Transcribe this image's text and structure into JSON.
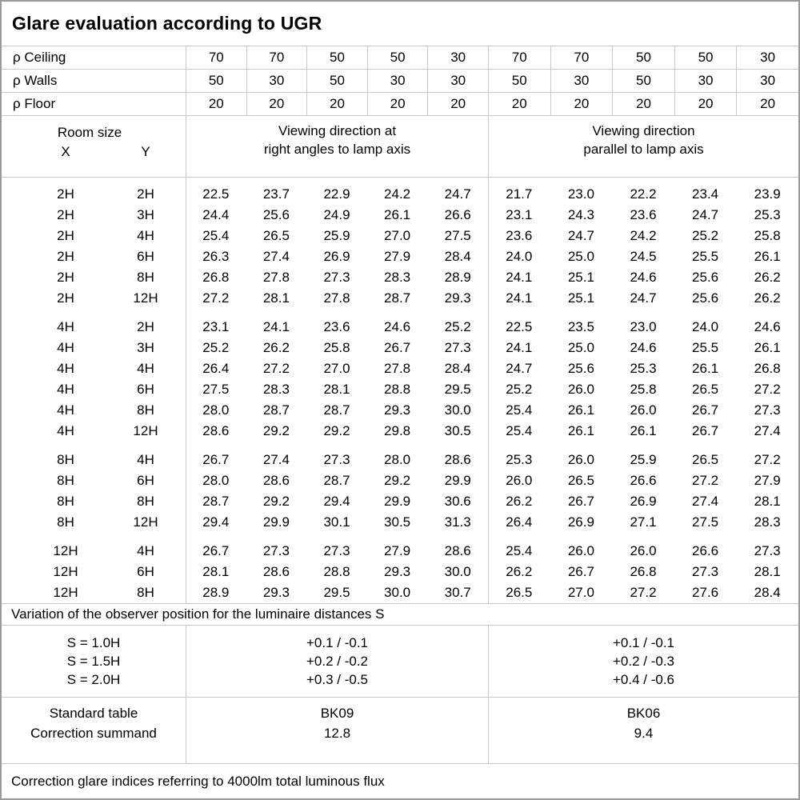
{
  "title": "Glare evaluation according to UGR",
  "reflectance_rows": [
    {
      "label": "ρ Ceiling",
      "values": [
        "70",
        "70",
        "50",
        "50",
        "30",
        "70",
        "70",
        "50",
        "50",
        "30"
      ]
    },
    {
      "label": "ρ Walls",
      "values": [
        "50",
        "30",
        "50",
        "30",
        "30",
        "50",
        "30",
        "50",
        "30",
        "30"
      ]
    },
    {
      "label": "ρ Floor",
      "values": [
        "20",
        "20",
        "20",
        "20",
        "20",
        "20",
        "20",
        "20",
        "20",
        "20"
      ]
    }
  ],
  "room_size": {
    "title": "Room size",
    "x_label": "X",
    "y_label": "Y"
  },
  "direction_headers": {
    "right_angles_line1": "Viewing direction at",
    "right_angles_line2": "right angles to lamp axis",
    "parallel_line1": "Viewing direction",
    "parallel_line2": "parallel to lamp axis"
  },
  "ugr_blocks": [
    {
      "rows": [
        {
          "x": "2H",
          "y": "2H",
          "right_angles": [
            "22.5",
            "23.7",
            "22.9",
            "24.2",
            "24.7"
          ],
          "parallel": [
            "21.7",
            "23.0",
            "22.2",
            "23.4",
            "23.9"
          ]
        },
        {
          "x": "2H",
          "y": "3H",
          "right_angles": [
            "24.4",
            "25.6",
            "24.9",
            "26.1",
            "26.6"
          ],
          "parallel": [
            "23.1",
            "24.3",
            "23.6",
            "24.7",
            "25.3"
          ]
        },
        {
          "x": "2H",
          "y": "4H",
          "right_angles": [
            "25.4",
            "26.5",
            "25.9",
            "27.0",
            "27.5"
          ],
          "parallel": [
            "23.6",
            "24.7",
            "24.2",
            "25.2",
            "25.8"
          ]
        },
        {
          "x": "2H",
          "y": "6H",
          "right_angles": [
            "26.3",
            "27.4",
            "26.9",
            "27.9",
            "28.4"
          ],
          "parallel": [
            "24.0",
            "25.0",
            "24.5",
            "25.5",
            "26.1"
          ]
        },
        {
          "x": "2H",
          "y": "8H",
          "right_angles": [
            "26.8",
            "27.8",
            "27.3",
            "28.3",
            "28.9"
          ],
          "parallel": [
            "24.1",
            "25.1",
            "24.6",
            "25.6",
            "26.2"
          ]
        },
        {
          "x": "2H",
          "y": "12H",
          "right_angles": [
            "27.2",
            "28.1",
            "27.8",
            "28.7",
            "29.3"
          ],
          "parallel": [
            "24.1",
            "25.1",
            "24.7",
            "25.6",
            "26.2"
          ]
        }
      ]
    },
    {
      "rows": [
        {
          "x": "4H",
          "y": "2H",
          "right_angles": [
            "23.1",
            "24.1",
            "23.6",
            "24.6",
            "25.2"
          ],
          "parallel": [
            "22.5",
            "23.5",
            "23.0",
            "24.0",
            "24.6"
          ]
        },
        {
          "x": "4H",
          "y": "3H",
          "right_angles": [
            "25.2",
            "26.2",
            "25.8",
            "26.7",
            "27.3"
          ],
          "parallel": [
            "24.1",
            "25.0",
            "24.6",
            "25.5",
            "26.1"
          ]
        },
        {
          "x": "4H",
          "y": "4H",
          "right_angles": [
            "26.4",
            "27.2",
            "27.0",
            "27.8",
            "28.4"
          ],
          "parallel": [
            "24.7",
            "25.6",
            "25.3",
            "26.1",
            "26.8"
          ]
        },
        {
          "x": "4H",
          "y": "6H",
          "right_angles": [
            "27.5",
            "28.3",
            "28.1",
            "28.8",
            "29.5"
          ],
          "parallel": [
            "25.2",
            "26.0",
            "25.8",
            "26.5",
            "27.2"
          ]
        },
        {
          "x": "4H",
          "y": "8H",
          "right_angles": [
            "28.0",
            "28.7",
            "28.7",
            "29.3",
            "30.0"
          ],
          "parallel": [
            "25.4",
            "26.1",
            "26.0",
            "26.7",
            "27.3"
          ]
        },
        {
          "x": "4H",
          "y": "12H",
          "right_angles": [
            "28.6",
            "29.2",
            "29.2",
            "29.8",
            "30.5"
          ],
          "parallel": [
            "25.4",
            "26.1",
            "26.1",
            "26.7",
            "27.4"
          ]
        }
      ]
    },
    {
      "rows": [
        {
          "x": "8H",
          "y": "4H",
          "right_angles": [
            "26.7",
            "27.4",
            "27.3",
            "28.0",
            "28.6"
          ],
          "parallel": [
            "25.3",
            "26.0",
            "25.9",
            "26.5",
            "27.2"
          ]
        },
        {
          "x": "8H",
          "y": "6H",
          "right_angles": [
            "28.0",
            "28.6",
            "28.7",
            "29.2",
            "29.9"
          ],
          "parallel": [
            "26.0",
            "26.5",
            "26.6",
            "27.2",
            "27.9"
          ]
        },
        {
          "x": "8H",
          "y": "8H",
          "right_angles": [
            "28.7",
            "29.2",
            "29.4",
            "29.9",
            "30.6"
          ],
          "parallel": [
            "26.2",
            "26.7",
            "26.9",
            "27.4",
            "28.1"
          ]
        },
        {
          "x": "8H",
          "y": "12H",
          "right_angles": [
            "29.4",
            "29.9",
            "30.1",
            "30.5",
            "31.3"
          ],
          "parallel": [
            "26.4",
            "26.9",
            "27.1",
            "27.5",
            "28.3"
          ]
        }
      ]
    },
    {
      "rows": [
        {
          "x": "12H",
          "y": "4H",
          "right_angles": [
            "26.7",
            "27.3",
            "27.3",
            "27.9",
            "28.6"
          ],
          "parallel": [
            "25.4",
            "26.0",
            "26.0",
            "26.6",
            "27.3"
          ]
        },
        {
          "x": "12H",
          "y": "6H",
          "right_angles": [
            "28.1",
            "28.6",
            "28.8",
            "29.3",
            "30.0"
          ],
          "parallel": [
            "26.2",
            "26.7",
            "26.8",
            "27.3",
            "28.1"
          ]
        },
        {
          "x": "12H",
          "y": "8H",
          "right_angles": [
            "28.9",
            "29.3",
            "29.5",
            "30.0",
            "30.7"
          ],
          "parallel": [
            "26.5",
            "27.0",
            "27.2",
            "27.6",
            "28.4"
          ]
        }
      ]
    }
  ],
  "observer_variation": {
    "caption": "Variation of the observer position for the luminaire distances S",
    "rows": [
      {
        "s": "S = 1.0H",
        "right_angles": "+0.1 / -0.1",
        "parallel": "+0.1 / -0.1"
      },
      {
        "s": "S = 1.5H",
        "right_angles": "+0.2 / -0.2",
        "parallel": "+0.2 / -0.3"
      },
      {
        "s": "S = 2.0H",
        "right_angles": "+0.3 / -0.5",
        "parallel": "+0.4 / -0.6"
      }
    ]
  },
  "summary": {
    "standard_table_label": "Standard table",
    "correction_summand_label": "Correction summand",
    "right_angles": {
      "standard_table": "BK09",
      "correction_summand": "12.8"
    },
    "parallel": {
      "standard_table": "BK06",
      "correction_summand": "9.4"
    }
  },
  "footer": "Correction glare indices referring to 4000lm total luminous flux",
  "colors": {
    "background": "#ffffff",
    "text": "#000000",
    "grid_line": "#c8c8c8",
    "outer_border": "#999999"
  }
}
